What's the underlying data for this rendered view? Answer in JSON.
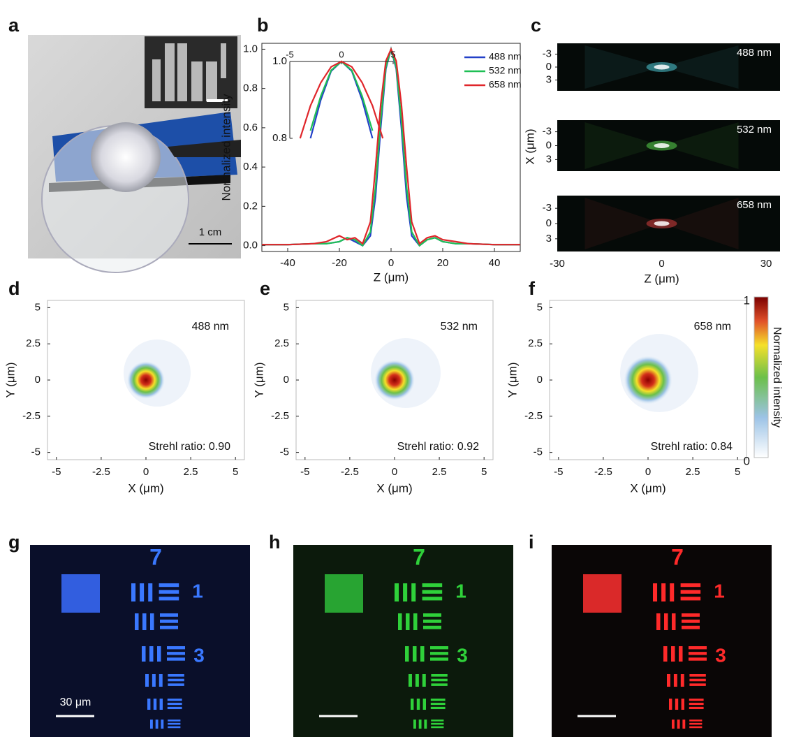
{
  "panel_labels": [
    "a",
    "b",
    "c",
    "d",
    "e",
    "f",
    "g",
    "h",
    "i"
  ],
  "scale_bars": {
    "a": "1 cm",
    "g": "30 μm"
  },
  "target_labels": [
    "7",
    "1",
    "3"
  ],
  "chart_data": [
    {
      "type": "line",
      "xlabel": "Z (μm)",
      "ylabel": "Normalized intensity",
      "xlim": [
        -50,
        50
      ],
      "xticks": [
        -40,
        -20,
        0,
        20,
        40
      ],
      "ylim": [
        -0.03,
        1.03
      ],
      "yticks": [
        {
          "value": 0,
          "label": "0.0"
        },
        0.2,
        0.4,
        0.6,
        0.8,
        {
          "value": 1,
          "label": "1.0"
        }
      ],
      "legend": "upper right",
      "x": [
        -50,
        -40,
        -30,
        -25,
        -20,
        -17,
        -14,
        -11,
        -8,
        -6,
        -4,
        -2,
        0,
        2,
        4,
        6,
        8,
        11,
        14,
        17,
        20,
        25,
        30,
        40,
        50
      ],
      "series": [
        {
          "name": "488 nm",
          "color": "#2341c8",
          "values": [
            0.005,
            0.005,
            0.01,
            0.01,
            0.02,
            0.04,
            0.02,
            0.0,
            0.05,
            0.25,
            0.6,
            0.9,
            1.0,
            0.9,
            0.6,
            0.25,
            0.05,
            0.0,
            0.03,
            0.04,
            0.02,
            0.01,
            0.01,
            0.005,
            0.005
          ]
        },
        {
          "name": "532 nm",
          "color": "#1fbf55",
          "values": [
            0.005,
            0.005,
            0.01,
            0.01,
            0.02,
            0.04,
            0.03,
            0.0,
            0.07,
            0.3,
            0.64,
            0.91,
            1.0,
            0.91,
            0.64,
            0.3,
            0.07,
            0.0,
            0.03,
            0.04,
            0.02,
            0.01,
            0.01,
            0.005,
            0.005
          ]
        },
        {
          "name": "658 nm",
          "color": "#e0262b",
          "values": [
            0.005,
            0.005,
            0.01,
            0.02,
            0.05,
            0.03,
            0.04,
            0.01,
            0.12,
            0.4,
            0.72,
            0.94,
            1.0,
            0.94,
            0.72,
            0.4,
            0.12,
            0.01,
            0.04,
            0.05,
            0.03,
            0.02,
            0.01,
            0.005,
            0.005
          ]
        }
      ]
    },
    {
      "type": "line",
      "xlim": [
        -5,
        5
      ],
      "xticks": [
        -5,
        0,
        5
      ],
      "ylim": [
        0.8,
        1.0
      ],
      "yticks": [
        {
          "value": 0.8,
          "label": "0.8"
        },
        {
          "value": 1.0,
          "label": "1.0"
        }
      ],
      "x": [
        -4,
        -3,
        -2,
        -1,
        0,
        1,
        2,
        3,
        4
      ],
      "series": [
        {
          "color": "#2341c8",
          "values": [
            null,
            0.8,
            0.9,
            0.975,
            1.0,
            0.975,
            0.9,
            0.8,
            null
          ]
        },
        {
          "color": "#1fbf55",
          "values": [
            null,
            0.82,
            0.91,
            0.977,
            1.0,
            0.977,
            0.91,
            0.82,
            null
          ]
        },
        {
          "color": "#e0262b",
          "values": [
            0.8,
            0.885,
            0.945,
            0.986,
            1.0,
            0.986,
            0.945,
            0.885,
            0.8
          ]
        }
      ]
    },
    {
      "type": "image",
      "xlabel": "Z (μm)",
      "ylabel": "X (μm)",
      "xlim": [
        -30,
        34
      ],
      "xticks": [
        -30,
        0,
        30
      ],
      "ylim": [
        -5.5,
        5.5
      ],
      "yticks": [
        -3,
        0,
        3
      ],
      "series": [
        {
          "name": "488 nm",
          "color": "#5ef0ff"
        },
        {
          "name": "532 nm",
          "color": "#6bff5a"
        },
        {
          "name": "658 nm",
          "color": "#ff4a4a"
        }
      ]
    },
    {
      "type": "heatmap",
      "name": "488 nm",
      "annotation": "Strehl ratio: 0.90",
      "xlabel": "X (μm)",
      "ylabel": "Y (μm)",
      "xlim": [
        -5.5,
        5.5
      ],
      "xticks": [
        -5,
        -2.5,
        0,
        2.5,
        5
      ],
      "ylim": [
        -5.5,
        5.5
      ],
      "yticks": [
        -5,
        -2.5,
        0,
        2.5,
        5
      ]
    },
    {
      "type": "heatmap",
      "name": "532 nm",
      "annotation": "Strehl ratio: 0.92",
      "xlabel": "X (μm)",
      "ylabel": "Y (μm)",
      "xlim": [
        -5.5,
        5.5
      ],
      "xticks": [
        -5,
        -2.5,
        0,
        2.5,
        5
      ],
      "ylim": [
        -5.5,
        5.5
      ],
      "yticks": [
        -5,
        -2.5,
        0,
        2.5,
        5
      ]
    },
    {
      "type": "heatmap",
      "name": "658 nm",
      "annotation": "Strehl ratio: 0.84",
      "xlabel": "X (μm)",
      "ylabel": "Y (μm)",
      "xlim": [
        -5.5,
        5.5
      ],
      "xticks": [
        -5,
        -2.5,
        0,
        2.5,
        5
      ],
      "ylim": [
        -5.5,
        5.5
      ],
      "yticks": [
        -5,
        -2.5,
        0,
        2.5,
        5
      ]
    },
    {
      "type": "colorbar",
      "label": "Normalized intensity",
      "ylim": [
        0,
        1
      ],
      "yticks": [
        0,
        1
      ]
    }
  ]
}
